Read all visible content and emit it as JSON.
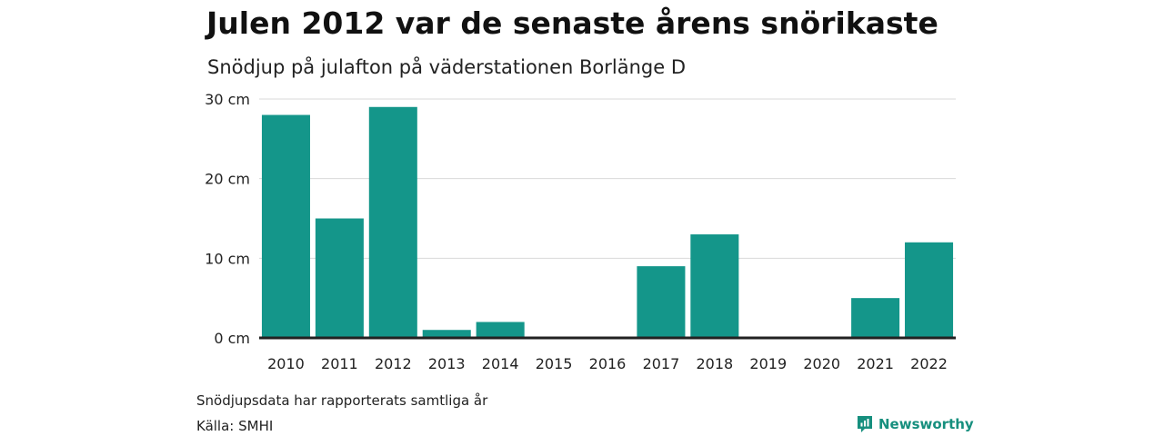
{
  "title": "Julen 2012 var de senaste årens snörikaste",
  "subtitle": "Snödjup på julafton på väderstationen Borlänge D",
  "note": "Snödjupsdata har rapporterats samtliga år",
  "source": "Källa: SMHI",
  "brand": {
    "name": "Newsworthy",
    "icon": "newsworthy-logo-icon",
    "color": "#168f7e"
  },
  "chart_data": {
    "type": "bar",
    "title": "Julen 2012 var de senaste årens snörikaste",
    "subtitle": "Snödjup på julafton på väderstationen Borlänge D",
    "xlabel": "",
    "ylabel": "",
    "categories": [
      "2010",
      "2011",
      "2012",
      "2013",
      "2014",
      "2015",
      "2016",
      "2017",
      "2018",
      "2019",
      "2020",
      "2021",
      "2022"
    ],
    "values": [
      28,
      15,
      29,
      1,
      2,
      0,
      0,
      9,
      13,
      0,
      0,
      5,
      12
    ],
    "ylim": [
      0,
      30
    ],
    "yticks": [
      0,
      10,
      20,
      30
    ],
    "ytick_labels": [
      "0 cm",
      "10 cm",
      "20 cm",
      "30 cm"
    ],
    "grid": true,
    "bar_color": "#14968a",
    "axis_color": "#222222",
    "grid_color": "#d9d9d9"
  }
}
